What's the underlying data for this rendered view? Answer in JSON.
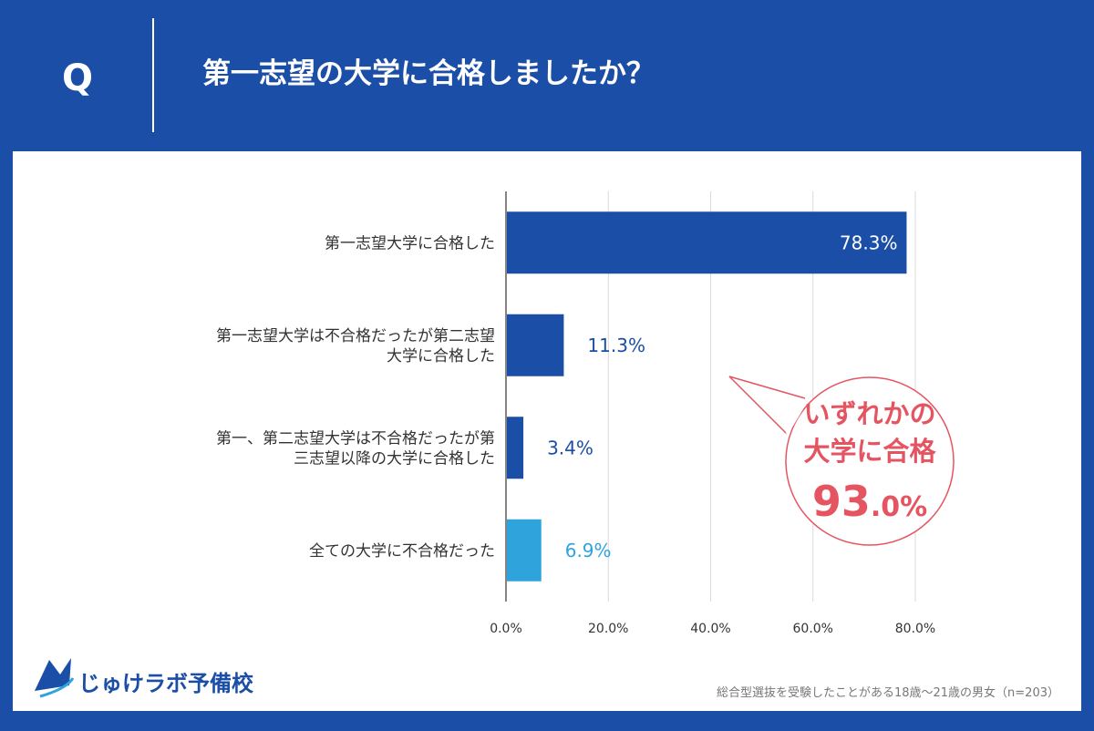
{
  "header": {
    "q_mark": "Q",
    "question": "第一志望の大学に合格しましたか？"
  },
  "chart_data": {
    "type": "bar",
    "orientation": "horizontal",
    "categories": [
      [
        "第一志望大学に合格した"
      ],
      [
        "第一志望大学は不合格だったが第二志望",
        "大学に合格した"
      ],
      [
        "第一、第二志望大学は不合格だったが第",
        "三志望以降の大学に合格した"
      ],
      [
        "全ての大学に不合格だった"
      ]
    ],
    "values": [
      78.3,
      11.3,
      3.4,
      6.9
    ],
    "value_labels": [
      "78.3%",
      "11.3%",
      "3.4%",
      "6.9%"
    ],
    "bar_colors": [
      "#1b4ea6",
      "#1b4ea6",
      "#1b4ea6",
      "#2ea3dc"
    ],
    "value_label_colors": [
      "#ffffff",
      "#1b4ea6",
      "#1b4ea6",
      "#2ea3dc"
    ],
    "xlim": [
      0,
      80
    ],
    "xticks": [
      0,
      20,
      40,
      60,
      80
    ],
    "xtick_labels": [
      "0.0%",
      "20.0%",
      "40.0%",
      "60.0%",
      "80.0%"
    ],
    "grid": true
  },
  "callout": {
    "line1": "いずれかの",
    "line2": "大学に合格",
    "value_main": "93",
    "value_suffix": ".0%",
    "color": "#e45561"
  },
  "footer": {
    "logo_text": "じゅけラボ予備校",
    "note": "総合型選抜を受験したことがある18歳～21歳の男女（n=203）"
  },
  "colors": {
    "brand": "#1b4ea6",
    "accent": "#2ea3dc",
    "callout": "#e45561"
  }
}
